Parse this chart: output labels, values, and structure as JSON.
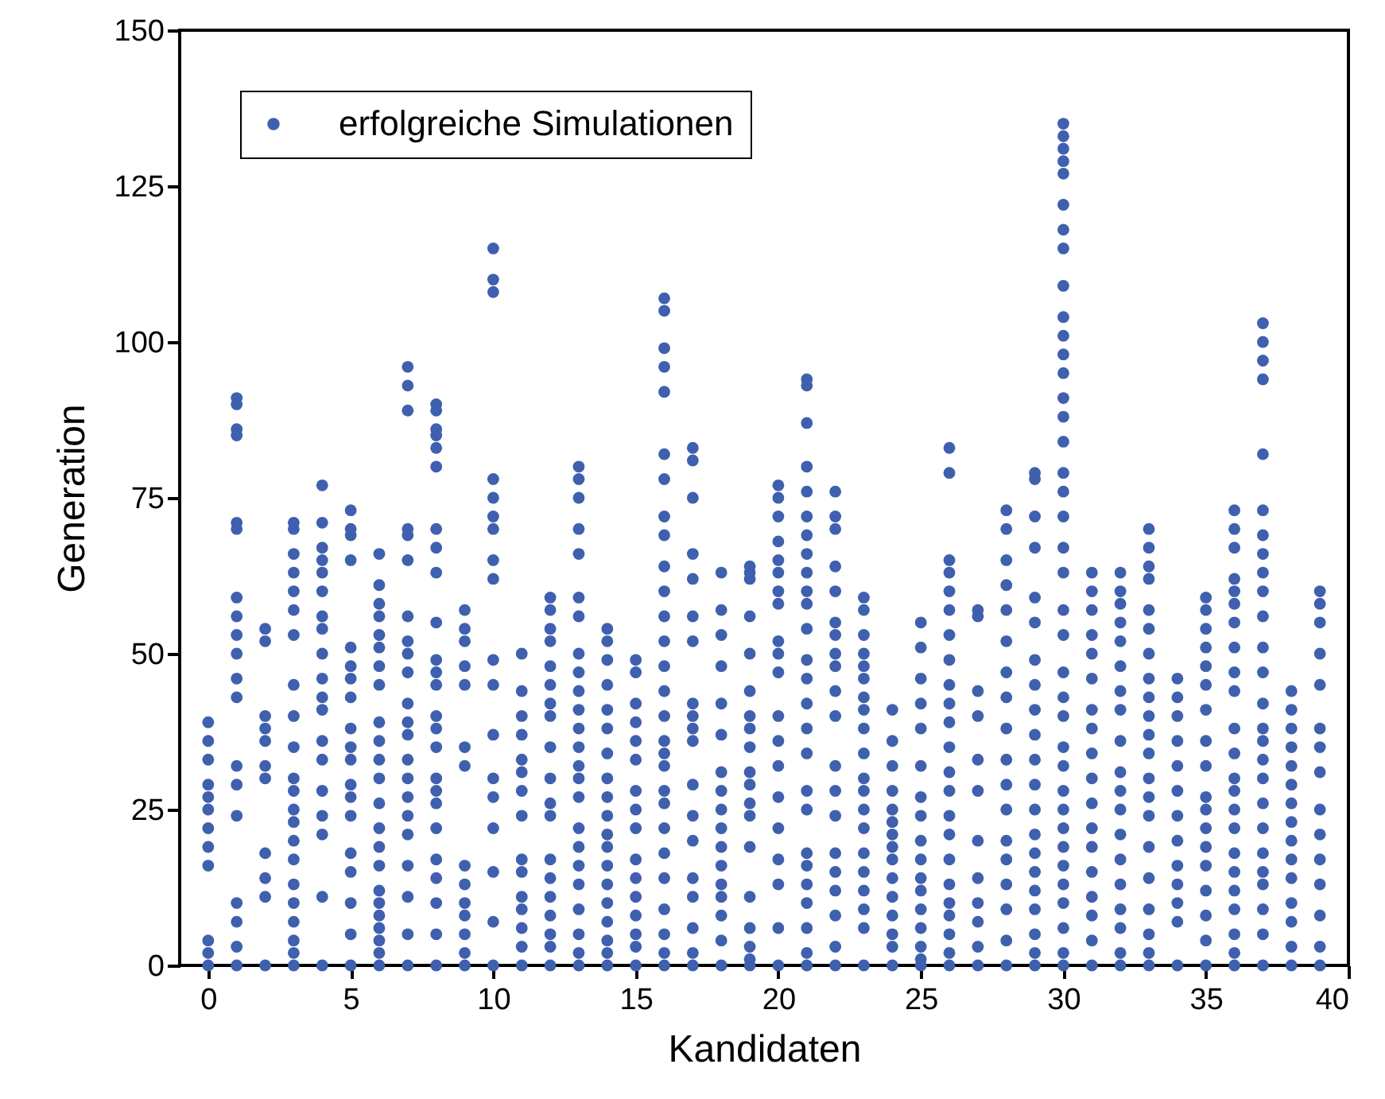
{
  "chart_data": {
    "type": "scatter",
    "xlabel": "Kandidaten",
    "ylabel": "Generation",
    "xlim": [
      -1,
      40
    ],
    "xticks": [
      0,
      5,
      10,
      15,
      20,
      25,
      30,
      35,
      40
    ],
    "ylim": [
      0,
      150
    ],
    "yticks": [
      0,
      25,
      50,
      75,
      100,
      125,
      150
    ],
    "grid": false,
    "legend": "top left",
    "marker": "circle",
    "series": [
      {
        "name": "erfolgreiche Simulationen",
        "color": "#3f60ae",
        "x": [
          0,
          0,
          0,
          0,
          0,
          0,
          0,
          0,
          0,
          0,
          0,
          0,
          1,
          1,
          1,
          1,
          1,
          1,
          1,
          1,
          1,
          1,
          1,
          1,
          1,
          1,
          1,
          1,
          1,
          1,
          1,
          2,
          2,
          2,
          2,
          2,
          2,
          2,
          2,
          2,
          2,
          2,
          3,
          3,
          3,
          3,
          3,
          3,
          3,
          3,
          3,
          3,
          3,
          3,
          3,
          3,
          3,
          3,
          3,
          3,
          3,
          3,
          3,
          3,
          4,
          4,
          4,
          4,
          4,
          4,
          4,
          4,
          4,
          4,
          4,
          4,
          4,
          4,
          4,
          4,
          4,
          4,
          4,
          5,
          5,
          5,
          5,
          5,
          5,
          5,
          5,
          5,
          5,
          5,
          5,
          5,
          5,
          5,
          5,
          5,
          5,
          5,
          6,
          6,
          6,
          6,
          6,
          6,
          6,
          6,
          6,
          6,
          6,
          6,
          6,
          6,
          6,
          6,
          6,
          6,
          6,
          6,
          6,
          6,
          6,
          7,
          7,
          7,
          7,
          7,
          7,
          7,
          7,
          7,
          7,
          7,
          7,
          7,
          7,
          7,
          7,
          7,
          7,
          7,
          7,
          7,
          7,
          8,
          8,
          8,
          8,
          8,
          8,
          8,
          8,
          8,
          8,
          8,
          8,
          8,
          8,
          8,
          8,
          8,
          8,
          8,
          8,
          8,
          8,
          8,
          8,
          8,
          9,
          9,
          9,
          9,
          9,
          9,
          9,
          9,
          9,
          9,
          9,
          9,
          9,
          9,
          10,
          10,
          10,
          10,
          10,
          10,
          10,
          10,
          10,
          10,
          10,
          10,
          10,
          10,
          10,
          10,
          10,
          10,
          11,
          11,
          11,
          11,
          11,
          11,
          11,
          11,
          11,
          11,
          11,
          11,
          11,
          11,
          11,
          12,
          12,
          12,
          12,
          12,
          12,
          12,
          12,
          12,
          12,
          12,
          12,
          12,
          12,
          12,
          12,
          12,
          12,
          12,
          13,
          13,
          13,
          13,
          13,
          13,
          13,
          13,
          13,
          13,
          13,
          13,
          13,
          13,
          13,
          13,
          13,
          13,
          13,
          13,
          13,
          13,
          13,
          13,
          14,
          14,
          14,
          14,
          14,
          14,
          14,
          14,
          14,
          14,
          14,
          14,
          14,
          14,
          14,
          14,
          14,
          14,
          14,
          15,
          15,
          15,
          15,
          15,
          15,
          15,
          15,
          15,
          15,
          15,
          15,
          15,
          15,
          15,
          15,
          16,
          16,
          16,
          16,
          16,
          16,
          16,
          16,
          16,
          16,
          16,
          16,
          16,
          16,
          16,
          16,
          16,
          16,
          16,
          16,
          16,
          16,
          16,
          16,
          16,
          16,
          16,
          16,
          17,
          17,
          17,
          17,
          17,
          17,
          17,
          17,
          17,
          17,
          17,
          17,
          17,
          17,
          17,
          17,
          17,
          17,
          17,
          18,
          18,
          18,
          18,
          18,
          18,
          18,
          18,
          18,
          18,
          18,
          18,
          18,
          18,
          18,
          18,
          18,
          19,
          19,
          19,
          19,
          19,
          19,
          19,
          19,
          19,
          19,
          19,
          19,
          19,
          19,
          19,
          19,
          19,
          19,
          19,
          20,
          20,
          20,
          20,
          20,
          20,
          20,
          20,
          20,
          20,
          20,
          20,
          20,
          20,
          20,
          20,
          20,
          20,
          20,
          20,
          21,
          21,
          21,
          21,
          21,
          21,
          21,
          21,
          21,
          21,
          21,
          21,
          21,
          21,
          21,
          21,
          21,
          21,
          21,
          21,
          21,
          21,
          21,
          21,
          21,
          21,
          22,
          22,
          22,
          22,
          22,
          22,
          22,
          22,
          22,
          22,
          22,
          22,
          22,
          22,
          22,
          22,
          22,
          22,
          22,
          22,
          23,
          23,
          23,
          23,
          23,
          23,
          23,
          23,
          23,
          23,
          23,
          23,
          23,
          23,
          23,
          23,
          23,
          23,
          23,
          23,
          24,
          24,
          24,
          24,
          24,
          24,
          24,
          24,
          24,
          24,
          24,
          24,
          24,
          24,
          24,
          25,
          25,
          25,
          25,
          25,
          25,
          25,
          25,
          25,
          25,
          25,
          25,
          25,
          25,
          25,
          25,
          25,
          26,
          26,
          26,
          26,
          26,
          26,
          26,
          26,
          26,
          26,
          26,
          26,
          26,
          26,
          26,
          26,
          26,
          26,
          26,
          26,
          26,
          26,
          26,
          27,
          27,
          27,
          27,
          27,
          27,
          27,
          27,
          27,
          27,
          27,
          27,
          28,
          28,
          28,
          28,
          28,
          28,
          28,
          28,
          28,
          28,
          28,
          28,
          28,
          28,
          28,
          28,
          28,
          28,
          29,
          29,
          29,
          29,
          29,
          29,
          29,
          29,
          29,
          29,
          29,
          29,
          29,
          29,
          29,
          29,
          29,
          29,
          29,
          29,
          29,
          30,
          30,
          30,
          30,
          30,
          30,
          30,
          30,
          30,
          30,
          30,
          30,
          30,
          30,
          30,
          30,
          30,
          30,
          30,
          30,
          30,
          30,
          30,
          30,
          30,
          30,
          30,
          30,
          30,
          30,
          30,
          30,
          30,
          30,
          30,
          30,
          30,
          30,
          31,
          31,
          31,
          31,
          31,
          31,
          31,
          31,
          31,
          31,
          31,
          31,
          31,
          31,
          31,
          31,
          31,
          31,
          32,
          32,
          32,
          32,
          32,
          32,
          32,
          32,
          32,
          32,
          32,
          32,
          32,
          32,
          32,
          32,
          32,
          32,
          32,
          33,
          33,
          33,
          33,
          33,
          33,
          33,
          33,
          33,
          33,
          33,
          33,
          33,
          33,
          33,
          33,
          33,
          33,
          33,
          33,
          33,
          34,
          34,
          34,
          34,
          34,
          34,
          34,
          34,
          34,
          34,
          34,
          34,
          34,
          35,
          35,
          35,
          35,
          35,
          35,
          35,
          35,
          35,
          35,
          35,
          35,
          35,
          35,
          35,
          35,
          35,
          35,
          36,
          36,
          36,
          36,
          36,
          36,
          36,
          36,
          36,
          36,
          36,
          36,
          36,
          36,
          36,
          36,
          36,
          36,
          36,
          36,
          36,
          36,
          36,
          37,
          37,
          37,
          37,
          37,
          37,
          37,
          37,
          37,
          37,
          37,
          37,
          37,
          37,
          37,
          37,
          37,
          37,
          37,
          37,
          37,
          37,
          37,
          37,
          37,
          37,
          38,
          38,
          38,
          38,
          38,
          38,
          38,
          38,
          38,
          38,
          38,
          38,
          38,
          38,
          38,
          39,
          39,
          39,
          39,
          39,
          39,
          39,
          39,
          39,
          39,
          39,
          39,
          39,
          39,
          39
        ],
        "values": [
          0,
          2,
          4,
          16,
          19,
          22,
          25,
          27,
          29,
          33,
          36,
          39,
          0,
          3,
          7,
          10,
          24,
          29,
          32,
          43,
          46,
          50,
          53,
          56,
          59,
          70,
          71,
          85,
          86,
          90,
          91,
          0,
          11,
          14,
          18,
          30,
          32,
          36,
          38,
          40,
          52,
          54,
          0,
          2,
          4,
          7,
          10,
          13,
          17,
          20,
          23,
          25,
          28,
          30,
          35,
          40,
          45,
          53,
          57,
          60,
          63,
          66,
          70,
          71,
          0,
          11,
          21,
          24,
          28,
          33,
          36,
          41,
          43,
          46,
          50,
          54,
          56,
          60,
          63,
          65,
          67,
          71,
          77,
          0,
          5,
          10,
          15,
          18,
          24,
          27,
          29,
          33,
          35,
          38,
          43,
          46,
          48,
          51,
          65,
          69,
          70,
          73,
          0,
          2,
          4,
          6,
          8,
          10,
          12,
          16,
          19,
          22,
          26,
          30,
          33,
          36,
          39,
          45,
          48,
          51,
          53,
          56,
          58,
          61,
          66,
          0,
          5,
          11,
          16,
          21,
          24,
          27,
          30,
          33,
          37,
          39,
          42,
          47,
          50,
          52,
          56,
          65,
          69,
          70,
          89,
          93,
          96,
          0,
          5,
          10,
          14,
          17,
          22,
          26,
          28,
          30,
          35,
          38,
          40,
          45,
          47,
          49,
          55,
          63,
          67,
          70,
          80,
          83,
          85,
          86,
          89,
          90,
          0,
          2,
          5,
          8,
          10,
          13,
          16,
          32,
          35,
          45,
          48,
          52,
          54,
          57,
          0,
          7,
          15,
          22,
          27,
          30,
          37,
          45,
          49,
          62,
          65,
          70,
          72,
          75,
          78,
          108,
          110,
          115,
          0,
          3,
          6,
          9,
          11,
          15,
          17,
          24,
          28,
          31,
          33,
          37,
          40,
          44,
          50,
          0,
          3,
          5,
          8,
          11,
          14,
          17,
          24,
          26,
          30,
          35,
          40,
          42,
          45,
          48,
          52,
          54,
          57,
          59,
          0,
          2,
          5,
          9,
          13,
          16,
          19,
          22,
          27,
          30,
          32,
          35,
          38,
          41,
          44,
          47,
          50,
          56,
          59,
          66,
          70,
          75,
          78,
          80,
          0,
          2,
          4,
          7,
          10,
          13,
          16,
          19,
          21,
          24,
          27,
          30,
          34,
          38,
          41,
          45,
          49,
          52,
          54,
          0,
          3,
          5,
          8,
          11,
          14,
          17,
          22,
          25,
          28,
          33,
          36,
          39,
          42,
          47,
          49,
          0,
          2,
          5,
          9,
          14,
          18,
          22,
          26,
          28,
          32,
          34,
          36,
          40,
          44,
          48,
          52,
          56,
          60,
          64,
          69,
          72,
          78,
          82,
          92,
          96,
          99,
          105,
          107,
          0,
          2,
          6,
          11,
          14,
          20,
          24,
          29,
          36,
          38,
          40,
          42,
          52,
          56,
          62,
          66,
          75,
          81,
          83,
          0,
          4,
          8,
          11,
          13,
          16,
          19,
          22,
          25,
          28,
          31,
          37,
          42,
          48,
          53,
          57,
          63,
          0,
          1,
          3,
          6,
          11,
          19,
          24,
          26,
          29,
          31,
          35,
          38,
          40,
          44,
          50,
          56,
          62,
          63,
          64,
          0,
          6,
          13,
          17,
          22,
          27,
          32,
          36,
          40,
          47,
          50,
          52,
          58,
          60,
          63,
          65,
          68,
          72,
          75,
          77,
          0,
          2,
          6,
          10,
          13,
          16,
          18,
          25,
          28,
          34,
          38,
          42,
          46,
          49,
          54,
          58,
          60,
          63,
          66,
          69,
          72,
          76,
          80,
          87,
          93,
          94,
          0,
          3,
          8,
          12,
          15,
          18,
          24,
          28,
          32,
          40,
          44,
          48,
          50,
          53,
          55,
          60,
          64,
          70,
          72,
          76,
          0,
          6,
          9,
          12,
          15,
          18,
          22,
          25,
          28,
          30,
          34,
          38,
          41,
          43,
          46,
          48,
          50,
          53,
          57,
          59,
          0,
          3,
          5,
          8,
          11,
          14,
          17,
          19,
          21,
          23,
          25,
          28,
          32,
          36,
          41,
          0,
          1,
          3,
          6,
          9,
          12,
          14,
          17,
          20,
          24,
          27,
          32,
          38,
          42,
          46,
          51,
          55,
          0,
          2,
          5,
          8,
          10,
          13,
          17,
          21,
          24,
          28,
          31,
          35,
          39,
          42,
          45,
          49,
          53,
          57,
          60,
          63,
          65,
          79,
          83,
          0,
          3,
          7,
          10,
          14,
          20,
          28,
          33,
          40,
          44,
          56,
          57,
          0,
          4,
          9,
          13,
          17,
          20,
          25,
          29,
          33,
          38,
          43,
          47,
          52,
          57,
          61,
          65,
          70,
          73,
          0,
          2,
          5,
          9,
          12,
          15,
          18,
          21,
          25,
          29,
          33,
          37,
          41,
          45,
          49,
          55,
          59,
          67,
          72,
          78,
          79,
          0,
          2,
          6,
          10,
          13,
          16,
          19,
          22,
          25,
          28,
          32,
          35,
          40,
          43,
          47,
          53,
          57,
          63,
          67,
          72,
          76,
          79,
          84,
          88,
          91,
          95,
          98,
          101,
          104,
          109,
          115,
          118,
          122,
          127,
          129,
          131,
          133,
          135,
          0,
          4,
          8,
          11,
          15,
          19,
          22,
          26,
          30,
          34,
          38,
          41,
          46,
          50,
          53,
          57,
          60,
          63,
          0,
          2,
          6,
          9,
          13,
          17,
          21,
          25,
          28,
          31,
          36,
          41,
          44,
          48,
          52,
          55,
          58,
          60,
          63,
          0,
          2,
          5,
          9,
          14,
          19,
          24,
          27,
          30,
          34,
          37,
          40,
          43,
          46,
          50,
          54,
          57,
          62,
          64,
          67,
          70,
          0,
          7,
          10,
          13,
          16,
          20,
          24,
          28,
          32,
          36,
          40,
          43,
          46,
          0,
          4,
          8,
          12,
          16,
          19,
          22,
          25,
          27,
          32,
          36,
          41,
          45,
          48,
          51,
          54,
          57,
          59,
          0,
          2,
          5,
          9,
          12,
          15,
          18,
          22,
          25,
          28,
          30,
          34,
          38,
          44,
          47,
          51,
          55,
          58,
          60,
          62,
          67,
          70,
          73,
          0,
          5,
          9,
          13,
          15,
          18,
          22,
          26,
          30,
          33,
          36,
          38,
          42,
          47,
          51,
          56,
          60,
          63,
          66,
          69,
          73,
          82,
          94,
          97,
          100,
          103,
          0,
          3,
          7,
          10,
          14,
          17,
          20,
          23,
          26,
          29,
          32,
          35,
          38,
          41,
          44,
          0,
          3,
          8,
          13,
          17,
          21,
          25,
          31,
          35,
          38,
          45,
          50,
          55,
          58,
          60
        ]
      }
    ]
  }
}
